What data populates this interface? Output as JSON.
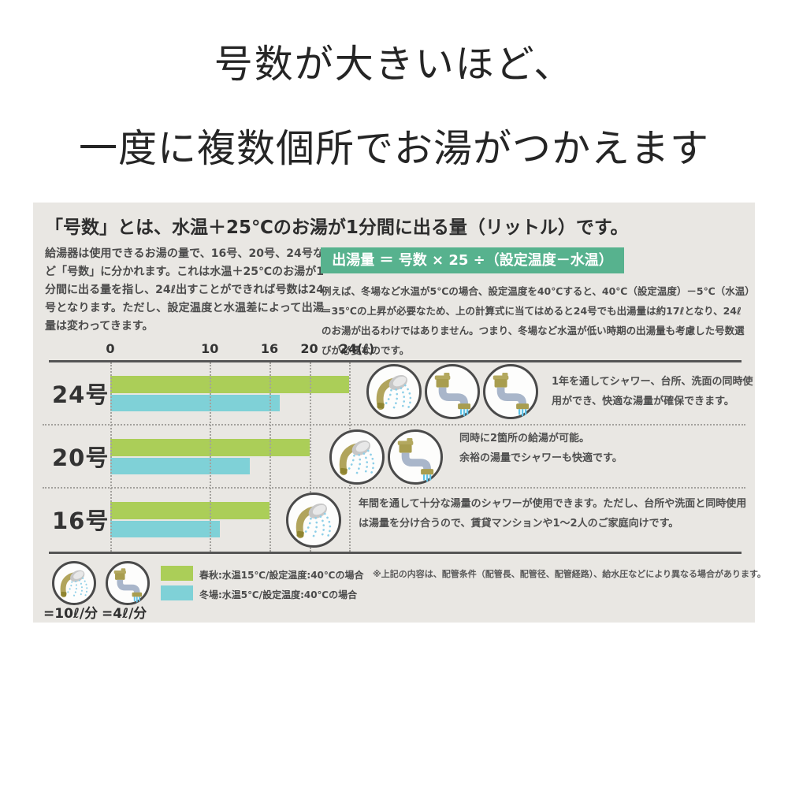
{
  "title": {
    "line1": "号数が大きいほど、",
    "line2": "一度に複数個所でお湯がつかえます"
  },
  "panel": {
    "heading": "「号数」とは、水温＋25℃のお湯が1分間に出る量（リットル）です。",
    "intro": "給湯器は使用できるお湯の量で、16号、20号、24号など「号数」に分かれます。これは水温＋25℃のお湯が1分間に出る量を指し、24ℓ出すことができれば号数は24号となります。ただし、設定温度と水温差によって出湯量は変わってきます。",
    "formula": "出湯量 ＝ 号数 × 25 ÷（設定温度－水温）",
    "formula_note": "例えば、冬場など水温が5℃の場合、設定温度を40℃すると、40℃（設定温度）－5℃（水温）＝35℃の上昇が必要なため、上の計算式に当てはめると24号でも出湯量は約17ℓとなり、24ℓのお湯が出るわけではありません。つまり、冬場など水温が低い時期の出湯量も考慮した号数選びが必要なのです。"
  },
  "chart_data": {
    "type": "bar",
    "orientation": "horizontal",
    "categories": [
      "24号",
      "20号",
      "16号"
    ],
    "series": [
      {
        "name": "春秋:水温15℃/設定温度:40℃の場合",
        "color": "#abce58",
        "values": [
          24,
          20,
          16
        ]
      },
      {
        "name": "冬場:水温5℃/設定温度:40℃の場合",
        "color": "#7fd1d7",
        "values": [
          17,
          14,
          11
        ]
      }
    ],
    "x_ticks": [
      0,
      10,
      16,
      20,
      24
    ],
    "x_unit": "(ℓ)",
    "xlim": [
      0,
      24
    ],
    "grid": "dotted-vertical",
    "rows": [
      {
        "label": "24号",
        "icons": [
          "shower-icon",
          "faucet-icon",
          "faucet-icon"
        ],
        "description": "1年を通してシャワー、台所、洗面の同時使用ができ、快適な湯量が確保できます。"
      },
      {
        "label": "20号",
        "icons": [
          "shower-icon",
          "faucet-icon"
        ],
        "description": "同時に2箇所の給湯が可能。\n余裕の湯量でシャワーも快適です。"
      },
      {
        "label": "16号",
        "icons": [
          "shower-icon"
        ],
        "description": "年間を通して十分な湯量のシャワーが使用できます。ただし、台所や洗面と同時使用は湯量を分け合うので、賃貸マンションや1～2人のご家庭向けです。"
      }
    ]
  },
  "legend": {
    "shower_rate": "=10ℓ/分",
    "faucet_rate": "=4ℓ/分",
    "spring_label": "春秋:水温15℃/設定温度:40℃の場合",
    "winter_label": "冬場:水温5℃/設定温度:40℃の場合",
    "note": "※上記の内容は、配管条件（配管長、配管径、配管経路）、給水圧などにより異なる場合があります。",
    "colors": {
      "spring": "#abce58",
      "winter": "#7fd1d7",
      "formula_box": "#57b28e",
      "panel_bg": "#e9e7e3"
    }
  }
}
